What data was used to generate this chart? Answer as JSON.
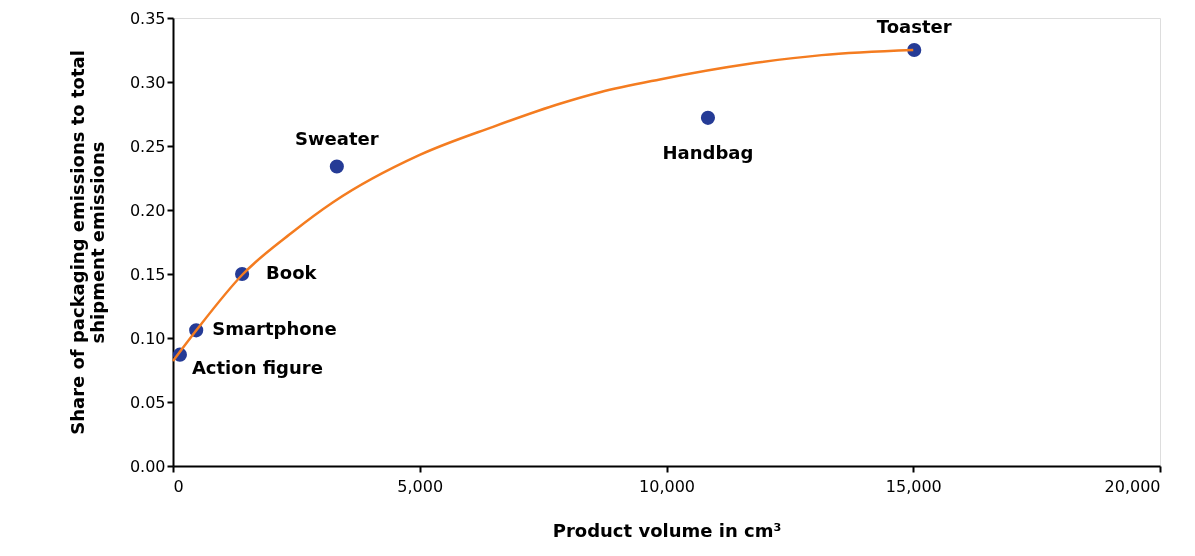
{
  "chart_data": {
    "type": "scatter",
    "xlabel": "Product volume in cm³",
    "ylabel": "Share of packaging emissions to total shipment emissions",
    "series": [
      {
        "color": "#253b96",
        "x": [
          140,
          470,
          1400,
          3320,
          10840,
          15020
        ],
        "values": [
          0.087,
          0.106,
          0.15,
          0.234,
          0.272,
          0.325
        ]
      },
      {
        "type": "line",
        "marker": "none",
        "color": "#f47c20",
        "x": [
          0,
          473,
          1419,
          2432,
          3243,
          5000,
          6486,
          7838,
          8653,
          9865,
          11647,
          13144,
          15000
        ],
        "values": [
          0.082,
          0.106,
          0.15,
          0.183,
          0.206,
          0.243,
          0.265,
          0.283,
          0.292,
          0.302,
          0.314,
          0.321,
          0.325
        ]
      }
    ],
    "annotations": [
      {
        "text": "Action figure",
        "x": 140,
        "y": 0.087
      },
      {
        "text": "Smartphone",
        "x": 470,
        "y": 0.106
      },
      {
        "text": "Book",
        "x": 1400,
        "y": 0.15
      },
      {
        "text": "Sweater",
        "x": 3320,
        "y": 0.234
      },
      {
        "text": "Handbag",
        "x": 10840,
        "y": 0.272
      },
      {
        "text": "Toaster",
        "x": 15020,
        "y": 0.325
      }
    ],
    "xlim": [
      0,
      20000
    ],
    "xticks": [
      0,
      {
        "value": 5000,
        "label": "5,000"
      },
      {
        "value": 10000,
        "label": "10,000"
      },
      {
        "value": 15000,
        "label": "15,000"
      },
      {
        "value": 20000,
        "label": "20,000"
      }
    ],
    "ylim": [
      0,
      0.35
    ],
    "yticks": [
      {
        "value": 0,
        "label": "0.00"
      },
      0.05,
      {
        "value": 0.1,
        "label": "0.10"
      },
      0.15,
      {
        "value": 0.2,
        "label": "0.20"
      },
      0.25,
      {
        "value": 0.3,
        "label": "0.30"
      },
      0.35
    ],
    "grid": false,
    "marker": "circle",
    "line_style": "solid"
  }
}
